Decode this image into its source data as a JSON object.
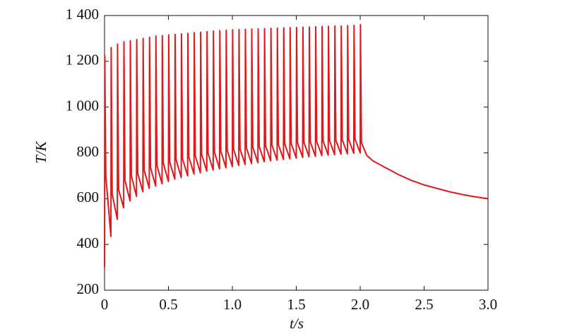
{
  "chart_data": {
    "type": "line",
    "xlabel": "t/s",
    "ylabel": "T/K",
    "xlim": [
      0,
      3
    ],
    "ylim": [
      200,
      1400
    ],
    "xticks": [
      0,
      0.5,
      {
        "value": 1,
        "label": "1.0"
      },
      1.5,
      {
        "value": 2,
        "label": "2.0"
      },
      2.5,
      {
        "value": 3,
        "label": "3.0"
      }
    ],
    "yticks": [
      200,
      400,
      600,
      800,
      {
        "value": 1000,
        "label": "1 000"
      },
      {
        "value": 1200,
        "label": "1 200"
      },
      {
        "value": 1400,
        "label": "1 400"
      }
    ],
    "grid": false,
    "series": [
      {
        "color": "#e0181c",
        "x": [
          0,
          0.002,
          0.01,
          0.05,
          0.052,
          0.06,
          0.1,
          0.102,
          0.11,
          0.15,
          0.152,
          0.16,
          0.2,
          0.202,
          0.21,
          0.25,
          0.252,
          0.26,
          0.3,
          0.302,
          0.31,
          0.35,
          0.352,
          0.36,
          0.4,
          0.402,
          0.41,
          0.45,
          0.452,
          0.46,
          0.5,
          0.502,
          0.51,
          0.55,
          0.552,
          0.56,
          0.6,
          0.602,
          0.61,
          0.65,
          0.652,
          0.66,
          0.7,
          0.702,
          0.71,
          0.75,
          0.752,
          0.76,
          0.8,
          0.802,
          0.81,
          0.85,
          0.852,
          0.86,
          0.9,
          0.902,
          0.91,
          0.95,
          0.952,
          0.96,
          1.0,
          1.002,
          1.01,
          1.05,
          1.052,
          1.06,
          1.1,
          1.102,
          1.11,
          1.15,
          1.152,
          1.16,
          1.2,
          1.202,
          1.21,
          1.25,
          1.252,
          1.26,
          1.3,
          1.302,
          1.31,
          1.35,
          1.352,
          1.36,
          1.4,
          1.402,
          1.41,
          1.45,
          1.452,
          1.46,
          1.5,
          1.502,
          1.51,
          1.55,
          1.552,
          1.56,
          1.6,
          1.602,
          1.61,
          1.65,
          1.652,
          1.66,
          1.7,
          1.702,
          1.71,
          1.75,
          1.752,
          1.76,
          1.8,
          1.802,
          1.81,
          1.85,
          1.852,
          1.86,
          1.9,
          1.902,
          1.91,
          1.95,
          1.952,
          1.96,
          2.0,
          2.002,
          2.01,
          2.05,
          2.1,
          2.2,
          2.3,
          2.4,
          2.5,
          2.6,
          2.7,
          2.8,
          2.9,
          3.0
        ],
        "values": [
          300,
          1225,
          700,
          435,
          1260,
          620,
          510,
          1275,
          640,
          560,
          1285,
          680,
          590,
          1290,
          700,
          610,
          1295,
          710,
          630,
          1300,
          725,
          645,
          1305,
          735,
          655,
          1310,
          745,
          665,
          1312,
          755,
          675,
          1315,
          760,
          685,
          1318,
          770,
          692,
          1320,
          775,
          700,
          1322,
          782,
          707,
          1325,
          788,
          713,
          1327,
          793,
          720,
          1330,
          798,
          725,
          1332,
          803,
          730,
          1334,
          807,
          735,
          1336,
          811,
          740,
          1338,
          815,
          745,
          1339,
          818,
          749,
          1340,
          822,
          753,
          1341,
          825,
          757,
          1342,
          828,
          761,
          1343,
          831,
          765,
          1344,
          834,
          768,
          1345,
          837,
          771,
          1346,
          839,
          774,
          1347,
          842,
          777,
          1348,
          844,
          780,
          1349,
          846,
          783,
          1350,
          848,
          785,
          1351,
          850,
          788,
          1352,
          852,
          790,
          1353,
          854,
          792,
          1354,
          855,
          794,
          1355,
          857,
          796,
          1356,
          858,
          798,
          1357,
          860,
          800,
          1360,
          845,
          790,
          765,
          735,
          705,
          680,
          660,
          645,
          630,
          618,
          608,
          600
        ]
      }
    ]
  }
}
